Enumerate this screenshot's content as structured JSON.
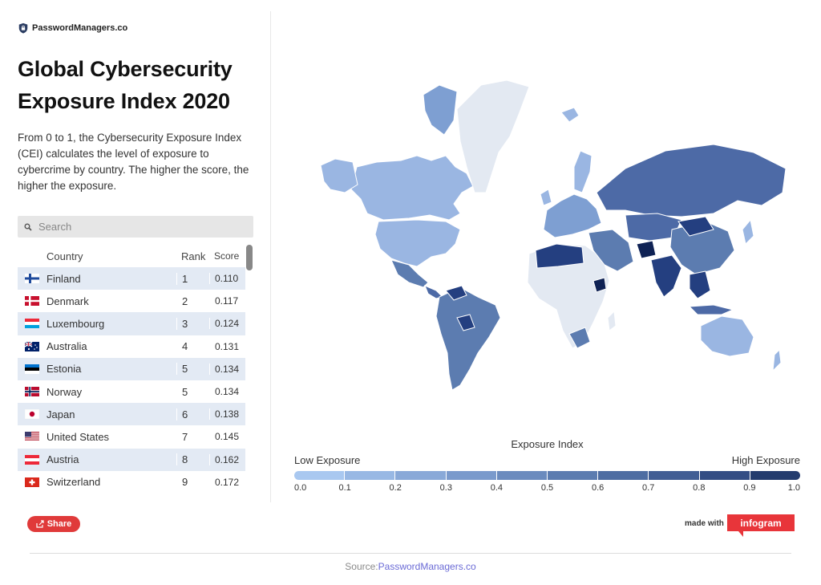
{
  "brand": {
    "name": "PasswordManagers.co"
  },
  "title": "Global Cybersecurity Exposure Index 2020",
  "description": "From 0 to 1, the Cybersecurity Exposure Index (CEI) calculates the level of exposure to cybercrime by country. The higher the score, the higher the exposure.",
  "search": {
    "placeholder": "Search"
  },
  "table": {
    "headers": {
      "country": "Country",
      "rank": "Rank",
      "score": "Score"
    },
    "rows": [
      {
        "country": "Finland",
        "rank": "1",
        "score": "0.110",
        "flag": "finland-flag"
      },
      {
        "country": "Denmark",
        "rank": "2",
        "score": "0.117",
        "flag": "denmark-flag"
      },
      {
        "country": "Luxembourg",
        "rank": "3",
        "score": "0.124",
        "flag": "luxembourg-flag"
      },
      {
        "country": "Australia",
        "rank": "4",
        "score": "0.131",
        "flag": "australia-flag"
      },
      {
        "country": "Estonia",
        "rank": "5",
        "score": "0.134",
        "flag": "estonia-flag"
      },
      {
        "country": "Norway",
        "rank": "5",
        "score": "0.134",
        "flag": "norway-flag"
      },
      {
        "country": "Japan",
        "rank": "6",
        "score": "0.138",
        "flag": "japan-flag"
      },
      {
        "country": "United States",
        "rank": "7",
        "score": "0.145",
        "flag": "usa-flag"
      },
      {
        "country": "Austria",
        "rank": "8",
        "score": "0.162",
        "flag": "austria-flag"
      },
      {
        "country": "Switzerland",
        "rank": "9",
        "score": "0.172",
        "flag": "switzerland-flag"
      }
    ]
  },
  "legend": {
    "title": "Exposure Index",
    "low_label": "Low Exposure",
    "high_label": "High Exposure",
    "ticks": [
      "0.0",
      "0.1",
      "0.2",
      "0.3",
      "0.4",
      "0.5",
      "0.6",
      "0.7",
      "0.8",
      "0.9",
      "1.0"
    ],
    "colors": [
      "#a9c8f0",
      "#98b8e4",
      "#89a9d8",
      "#7a9acc",
      "#6b8bbe",
      "#5c7cb0",
      "#4e6da2",
      "#415e94",
      "#334d84",
      "#233c6e",
      "#152c58"
    ]
  },
  "map": {
    "colors": {
      "unrated": "#e3e9f2",
      "low": "#9ab6e2",
      "mid_low": "#7e9fd2",
      "mid": "#5c7cb0",
      "mid_high": "#4d6aa6",
      "high": "#243f80",
      "very_high": "#0f2254"
    }
  },
  "share": {
    "label": "Share"
  },
  "made_with": {
    "label": "made with",
    "brand": "infogram"
  },
  "source": {
    "prefix": "Source:",
    "link": "PasswordManagers.co"
  }
}
